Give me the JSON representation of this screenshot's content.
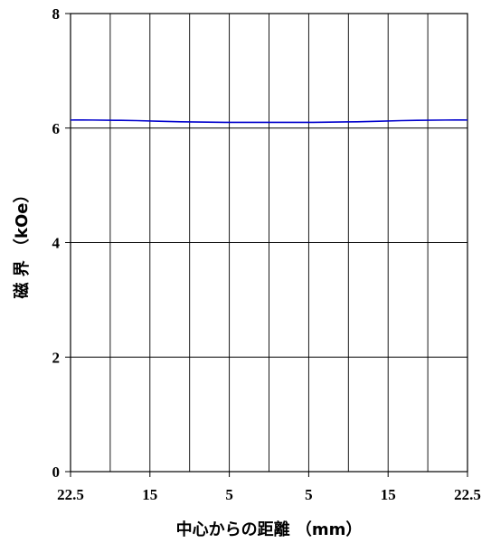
{
  "chart_data": {
    "type": "line",
    "title": "",
    "xlabel": "中心からの距離 （mm）",
    "ylabel": "磁 界 （kOe）",
    "x_tick_labels": [
      "22.5",
      "15",
      "5",
      "5",
      "15",
      "22.5"
    ],
    "y_ticks": [
      0,
      2,
      4,
      6,
      8
    ],
    "xlim": [
      -22.5,
      22.5
    ],
    "ylim": [
      0,
      8
    ],
    "grid": true,
    "series": [
      {
        "color": "#0000cc",
        "x": [
          -22.5,
          -20,
          -15,
          -10,
          -5,
          0,
          5,
          10,
          15,
          20,
          22.5
        ],
        "y": [
          6.14,
          6.14,
          6.13,
          6.11,
          6.1,
          6.1,
          6.1,
          6.11,
          6.13,
          6.14,
          6.14
        ]
      }
    ]
  }
}
